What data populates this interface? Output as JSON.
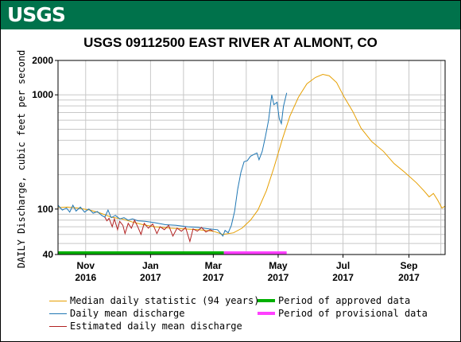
{
  "header": {
    "logo_text": "USGS",
    "brand_color": "#00724b"
  },
  "chart_data": {
    "type": "line",
    "title": "USGS 09112500 EAST RIVER AT ALMONT, CO",
    "ylabel": "DAILY Discharge, cubic feet per second",
    "xlabel": "",
    "yscale": "log",
    "ylim": [
      40,
      2000
    ],
    "xlim": [
      "2016-10-06",
      "2017-10-05"
    ],
    "grid": true,
    "y_ticks": [
      {
        "value": 40,
        "label": "40"
      },
      {
        "value": 100,
        "label": "100"
      },
      {
        "value": 1000,
        "label": "1000"
      },
      {
        "value": 2000,
        "label": "2000"
      }
    ],
    "x_ticks": [
      {
        "date": "2016-11-01",
        "label_month": "Nov",
        "label_year": "2016"
      },
      {
        "date": "2017-01-01",
        "label_month": "Jan",
        "label_year": "2017"
      },
      {
        "date": "2017-03-01",
        "label_month": "Mar",
        "label_year": "2017"
      },
      {
        "date": "2017-05-01",
        "label_month": "May",
        "label_year": "2017"
      },
      {
        "date": "2017-07-01",
        "label_month": "Jul",
        "label_year": "2017"
      },
      {
        "date": "2017-09-01",
        "label_month": "Sep",
        "label_year": "2017"
      }
    ],
    "series": [
      {
        "name": "Median daily statistic (94 years)",
        "color": "#e69f00",
        "points": [
          [
            "2016-10-06",
            103
          ],
          [
            "2016-10-15",
            104
          ],
          [
            "2016-10-25",
            102
          ],
          [
            "2016-11-05",
            98
          ],
          [
            "2016-11-15",
            92
          ],
          [
            "2016-11-25",
            85
          ],
          [
            "2016-12-05",
            82
          ],
          [
            "2016-12-15",
            77
          ],
          [
            "2016-12-25",
            73
          ],
          [
            "2017-01-05",
            70
          ],
          [
            "2017-01-20",
            68
          ],
          [
            "2017-02-01",
            67
          ],
          [
            "2017-02-15",
            66
          ],
          [
            "2017-03-01",
            64
          ],
          [
            "2017-03-10",
            60
          ],
          [
            "2017-03-20",
            62
          ],
          [
            "2017-03-28",
            68
          ],
          [
            "2017-04-05",
            80
          ],
          [
            "2017-04-12",
            98
          ],
          [
            "2017-04-20",
            145
          ],
          [
            "2017-04-27",
            230
          ],
          [
            "2017-05-05",
            410
          ],
          [
            "2017-05-12",
            650
          ],
          [
            "2017-05-20",
            950
          ],
          [
            "2017-05-28",
            1250
          ],
          [
            "2017-06-05",
            1420
          ],
          [
            "2017-06-12",
            1510
          ],
          [
            "2017-06-18",
            1470
          ],
          [
            "2017-06-25",
            1280
          ],
          [
            "2017-07-02",
            960
          ],
          [
            "2017-07-10",
            720
          ],
          [
            "2017-07-18",
            510
          ],
          [
            "2017-07-28",
            390
          ],
          [
            "2017-08-08",
            320
          ],
          [
            "2017-08-18",
            250
          ],
          [
            "2017-08-28",
            210
          ],
          [
            "2017-09-08",
            170
          ],
          [
            "2017-09-15",
            145
          ],
          [
            "2017-09-20",
            128
          ],
          [
            "2017-09-24",
            137
          ],
          [
            "2017-09-28",
            120
          ],
          [
            "2017-10-02",
            102
          ],
          [
            "2017-10-05",
            106
          ]
        ]
      },
      {
        "name": "Daily mean discharge",
        "color": "#1f77b4",
        "points": [
          [
            "2016-10-06",
            108
          ],
          [
            "2016-10-10",
            98
          ],
          [
            "2016-10-14",
            102
          ],
          [
            "2016-10-17",
            94
          ],
          [
            "2016-10-20",
            108
          ],
          [
            "2016-10-23",
            96
          ],
          [
            "2016-10-27",
            104
          ],
          [
            "2016-10-31",
            94
          ],
          [
            "2016-11-04",
            100
          ],
          [
            "2016-11-08",
            92
          ],
          [
            "2016-11-12",
            95
          ],
          [
            "2016-11-16",
            88
          ],
          [
            "2016-11-19",
            85
          ],
          [
            "2016-11-22",
            98
          ],
          [
            "2016-11-25",
            84
          ],
          [
            "2016-11-29",
            88
          ],
          [
            "2016-12-03",
            82
          ],
          [
            "2016-12-07",
            84
          ],
          [
            "2016-12-11",
            80
          ],
          [
            "2016-12-15",
            82
          ],
          [
            "2016-12-20",
            79
          ],
          [
            "2016-12-27",
            78
          ],
          [
            "2017-01-05",
            76
          ],
          [
            "2017-01-15",
            73
          ],
          [
            "2017-01-25",
            72
          ],
          [
            "2017-02-05",
            70
          ],
          [
            "2017-02-15",
            69
          ],
          [
            "2017-02-25",
            67
          ],
          [
            "2017-03-05",
            66
          ],
          [
            "2017-03-10",
            58
          ],
          [
            "2017-03-12",
            65
          ],
          [
            "2017-03-15",
            62
          ],
          [
            "2017-03-18",
            72
          ],
          [
            "2017-03-21",
            95
          ],
          [
            "2017-03-24",
            150
          ],
          [
            "2017-03-27",
            210
          ],
          [
            "2017-03-30",
            260
          ],
          [
            "2017-04-02",
            265
          ],
          [
            "2017-04-05",
            290
          ],
          [
            "2017-04-08",
            300
          ],
          [
            "2017-04-11",
            310
          ],
          [
            "2017-04-13",
            270
          ],
          [
            "2017-04-16",
            320
          ],
          [
            "2017-04-19",
            430
          ],
          [
            "2017-04-22",
            600
          ],
          [
            "2017-04-25",
            1000
          ],
          [
            "2017-04-27",
            820
          ],
          [
            "2017-04-30",
            860
          ],
          [
            "2017-05-02",
            620
          ],
          [
            "2017-05-04",
            560
          ],
          [
            "2017-05-06",
            790
          ],
          [
            "2017-05-09",
            1040
          ]
        ]
      },
      {
        "name": "Estimated daily mean discharge",
        "color": "#b22222",
        "points": [
          [
            "2016-11-19",
            85
          ],
          [
            "2016-11-21",
            79
          ],
          [
            "2016-11-23",
            83
          ],
          [
            "2016-11-26",
            70
          ],
          [
            "2016-11-28",
            82
          ],
          [
            "2016-12-01",
            66
          ],
          [
            "2016-12-03",
            78
          ],
          [
            "2016-12-06",
            72
          ],
          [
            "2016-12-08",
            61
          ],
          [
            "2016-12-11",
            75
          ],
          [
            "2016-12-14",
            68
          ],
          [
            "2016-12-17",
            80
          ],
          [
            "2016-12-20",
            70
          ],
          [
            "2016-12-23",
            60
          ],
          [
            "2016-12-26",
            75
          ],
          [
            "2016-12-30",
            68
          ],
          [
            "2017-01-03",
            74
          ],
          [
            "2017-01-07",
            61
          ],
          [
            "2017-01-10",
            70
          ],
          [
            "2017-01-14",
            66
          ],
          [
            "2017-01-18",
            72
          ],
          [
            "2017-01-22",
            58
          ],
          [
            "2017-01-26",
            68
          ],
          [
            "2017-01-30",
            64
          ],
          [
            "2017-02-03",
            69
          ],
          [
            "2017-02-07",
            52
          ],
          [
            "2017-02-10",
            67
          ],
          [
            "2017-02-14",
            64
          ],
          [
            "2017-02-18",
            69
          ],
          [
            "2017-02-22",
            63
          ],
          [
            "2017-02-26",
            66
          ],
          [
            "2017-03-01",
            64
          ]
        ]
      }
    ],
    "periods": [
      {
        "name": "Period of approved data",
        "color": "#00b000",
        "start": "2016-10-06",
        "end": "2017-03-11"
      },
      {
        "name": "Period of provisional data",
        "color": "#ff40ff",
        "start": "2017-03-11",
        "end": "2017-05-09"
      }
    ]
  }
}
